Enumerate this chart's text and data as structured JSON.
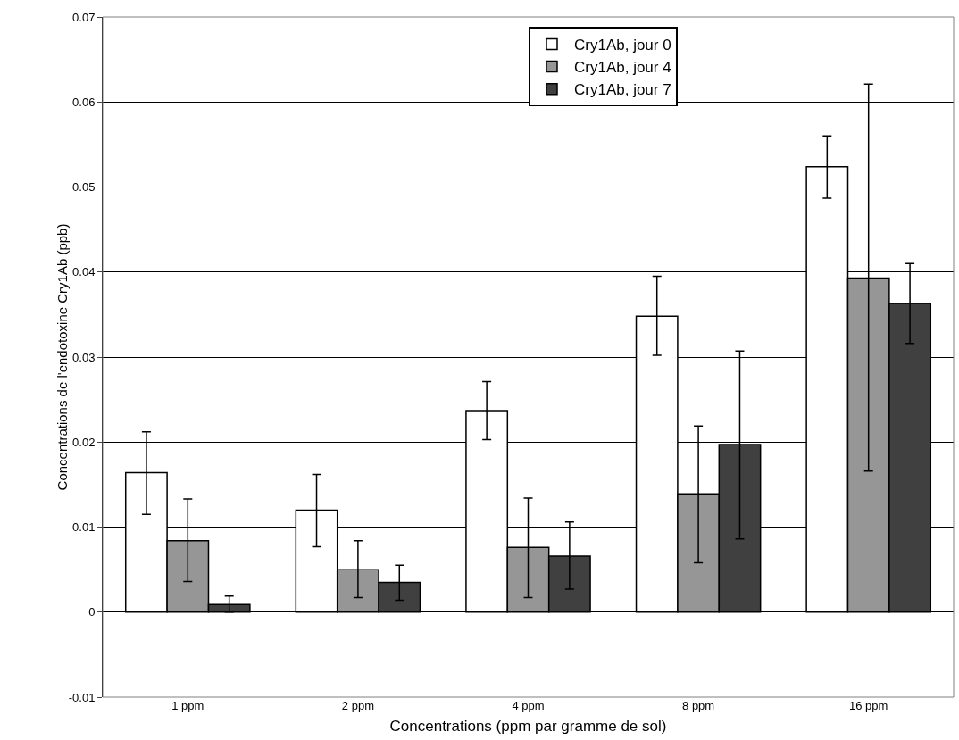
{
  "chart_data": {
    "type": "bar",
    "xlabel": "Concentrations (ppm par gramme de sol)",
    "ylabel": "Concentrations de l'endotoxine Cry1Ab (ppb)",
    "categories": [
      "1 ppm",
      "2 ppm",
      "4 ppm",
      "8 ppm",
      "16 ppm"
    ],
    "series": [
      {
        "name": "Cry1Ab, jour 0",
        "color": "#ffffff",
        "values": [
          0.0164,
          0.012,
          0.0237,
          0.0348,
          0.0524
        ],
        "errors": [
          [
            0.0115,
            0.0212
          ],
          [
            0.0077,
            0.0162
          ],
          [
            0.0203,
            0.0271
          ],
          [
            0.0302,
            0.0395
          ],
          [
            0.0487,
            0.056
          ]
        ]
      },
      {
        "name": "Cry1Ab, jour 4",
        "color": "#969696",
        "values": [
          0.0084,
          0.005,
          0.0076,
          0.0139,
          0.0393
        ],
        "errors": [
          [
            0.0036,
            0.0133
          ],
          [
            0.0017,
            0.0084
          ],
          [
            0.0017,
            0.0134
          ],
          [
            0.0058,
            0.0219
          ],
          [
            0.0166,
            0.0621
          ]
        ]
      },
      {
        "name": "Cry1Ab, jour 7",
        "color": "#404040",
        "values": [
          0.0009,
          0.0035,
          0.0066,
          0.0197,
          0.0363
        ],
        "errors": [
          [
            0.0,
            0.0019
          ],
          [
            0.0014,
            0.0055
          ],
          [
            0.0027,
            0.0106
          ],
          [
            0.0086,
            0.0307
          ],
          [
            0.0316,
            0.041
          ]
        ]
      }
    ],
    "ylim": [
      -0.01,
      0.07
    ],
    "yticks": [
      -0.01,
      0,
      0.01,
      0.02,
      0.03,
      0.04,
      0.05,
      0.06,
      0.07
    ],
    "grid": "y",
    "legend": "top right"
  }
}
